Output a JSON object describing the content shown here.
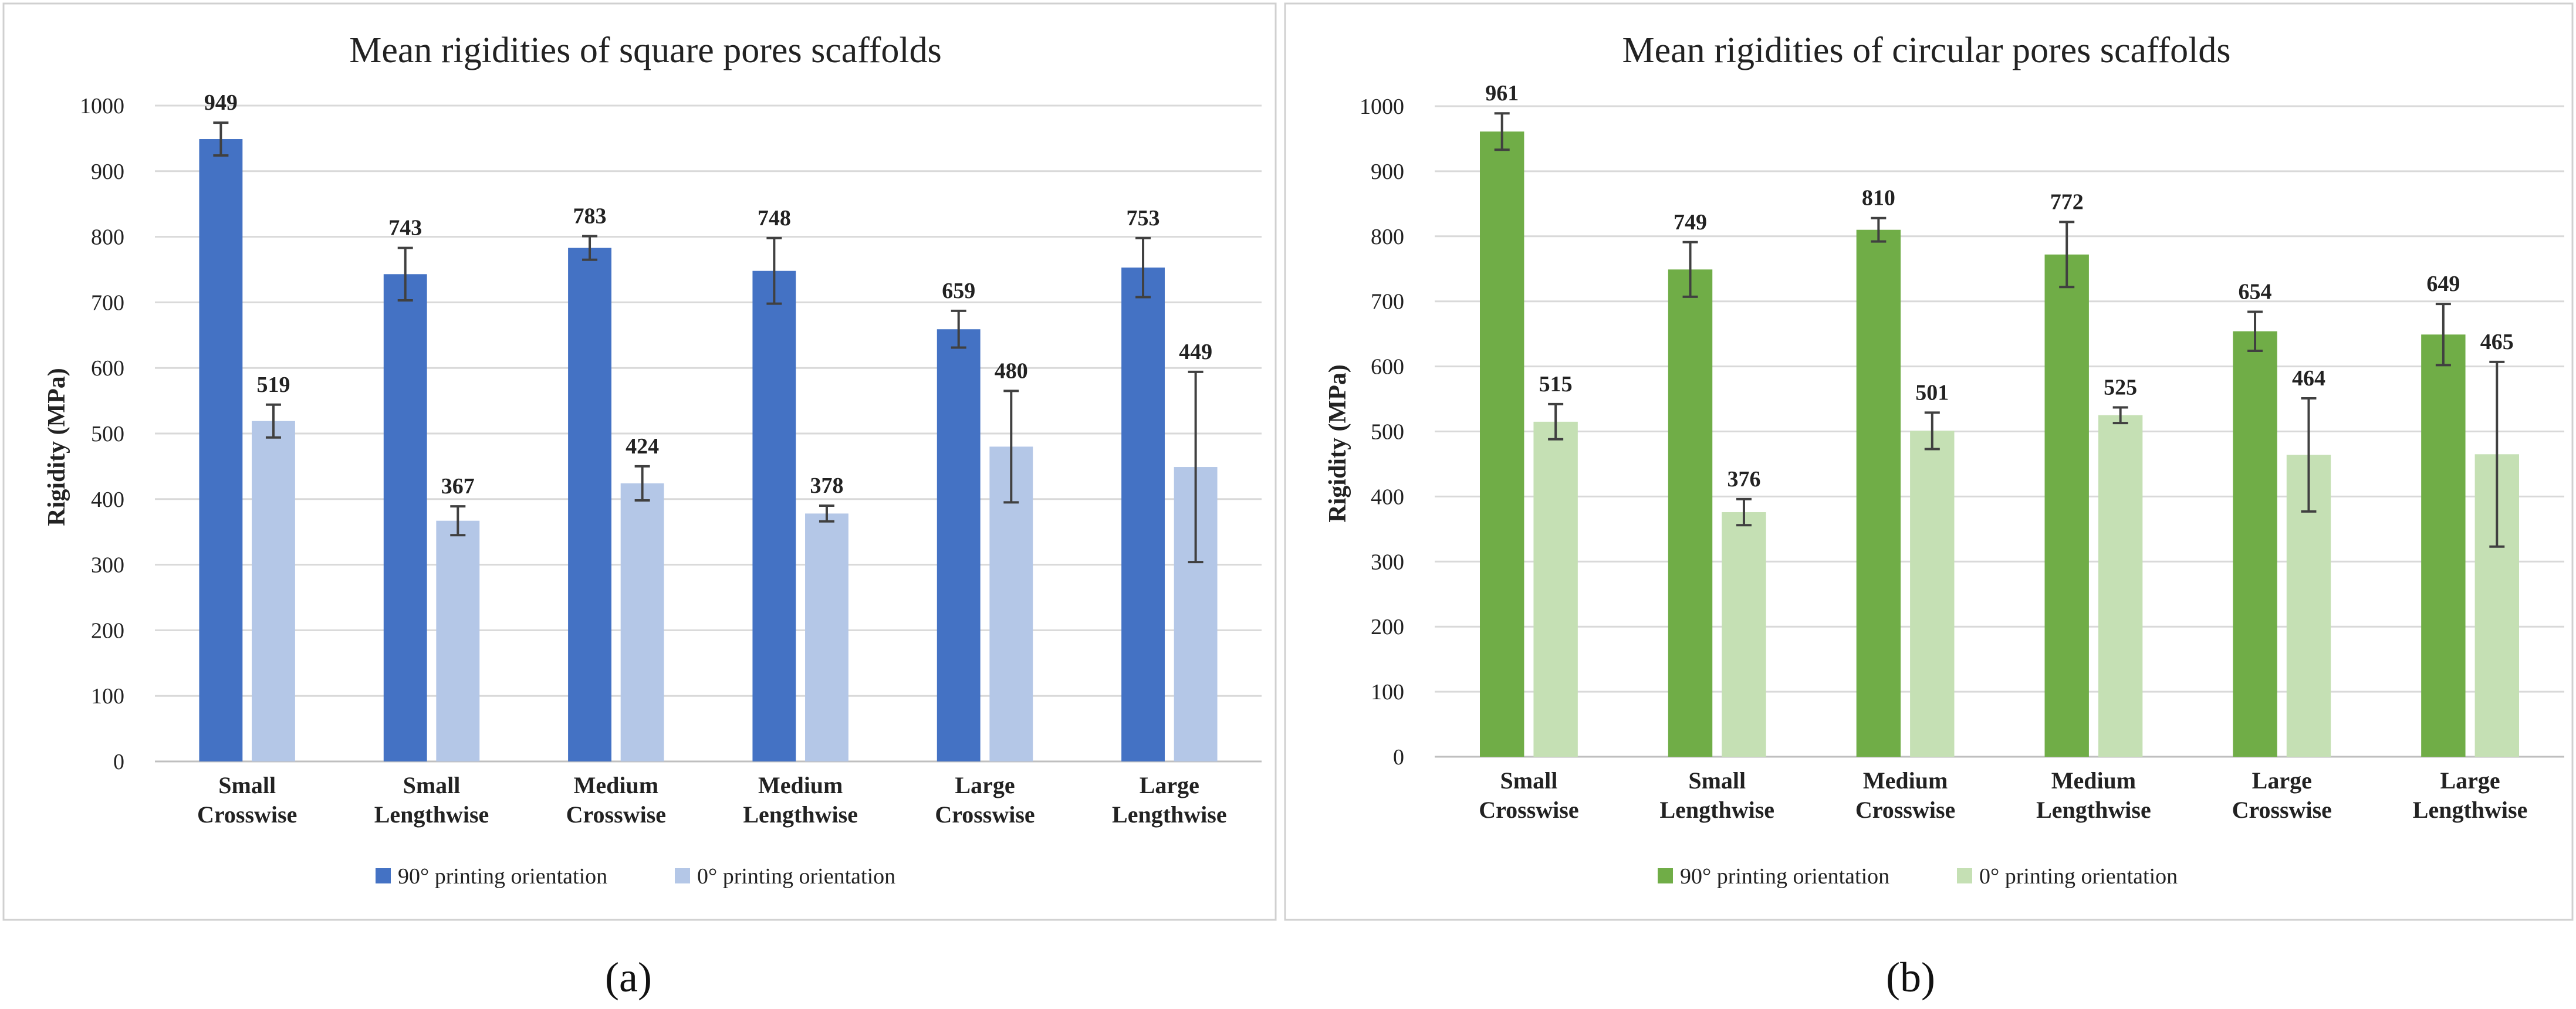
{
  "chart_data": [
    {
      "type": "bar",
      "panel_label": "(a)",
      "title": "Mean rigidities of square pores scaffolds",
      "ylabel": "Rigidity (MPa)",
      "xlabel": "",
      "ylim": [
        0,
        1000
      ],
      "yticks": [
        "0",
        "100",
        "200",
        "300",
        "400",
        "500",
        "600",
        "700",
        "800",
        "900",
        "1000"
      ],
      "categories": [
        [
          "Small",
          "Crosswise"
        ],
        [
          "Small",
          "Lengthwise"
        ],
        [
          "Medium",
          "Crosswise"
        ],
        [
          "Medium",
          "Lengthwise"
        ],
        [
          "Large",
          "Crosswise"
        ],
        [
          "Large",
          "Lengthwise"
        ]
      ],
      "series": [
        {
          "name": "90° printing orientation",
          "color": "#4472C4",
          "values": [
            949,
            743,
            783,
            748,
            659,
            753
          ],
          "labels": [
            "949",
            "743",
            "783",
            "748",
            "659",
            "753"
          ],
          "errors": [
            25,
            40,
            18,
            50,
            28,
            45
          ]
        },
        {
          "name": "0° printing orientation",
          "color": "#B4C7E7",
          "values": [
            519,
            367,
            424,
            378,
            480,
            449
          ],
          "labels": [
            "519",
            "367",
            "424",
            "378",
            "480",
            "449"
          ],
          "errors": [
            25,
            22,
            26,
            12,
            85,
            145
          ]
        }
      ]
    },
    {
      "type": "bar",
      "panel_label": "(b)",
      "title": "Mean rigidities of circular pores scaffolds",
      "ylabel": "Rigidity (MPa)",
      "xlabel": "",
      "ylim": [
        0,
        1000
      ],
      "yticks": [
        "0",
        "100",
        "200",
        "300",
        "400",
        "500",
        "600",
        "700",
        "800",
        "900",
        "1000"
      ],
      "categories": [
        [
          "Small",
          "Crosswise"
        ],
        [
          "Small",
          "Lengthwise"
        ],
        [
          "Medium",
          "Crosswise"
        ],
        [
          "Medium",
          "Lengthwise"
        ],
        [
          "Large",
          "Crosswise"
        ],
        [
          "Large",
          "Lengthwise"
        ]
      ],
      "series": [
        {
          "name": "90° printing orientation",
          "color": "#70AD47",
          "values": [
            961,
            749,
            810,
            772,
            654,
            649
          ],
          "labels": [
            "961",
            "749",
            "810",
            "772",
            "654",
            "649"
          ],
          "errors": [
            28,
            42,
            18,
            50,
            30,
            47
          ]
        },
        {
          "name": "0° printing orientation",
          "color": "#C5E0B4",
          "values": [
            515,
            376,
            501,
            525,
            464,
            465
          ],
          "labels": [
            "515",
            "376",
            "501",
            "525",
            "464",
            "465"
          ],
          "errors": [
            27,
            20,
            28,
            12,
            87,
            142
          ]
        }
      ]
    }
  ]
}
